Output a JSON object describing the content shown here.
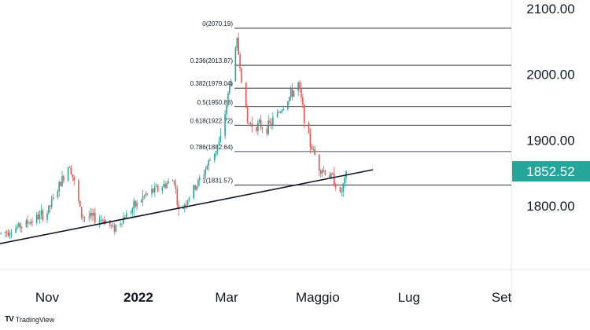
{
  "chart_data": {
    "type": "candlestick",
    "title": "",
    "xlabel": "",
    "ylabel": "",
    "ylim": [
      1730,
      2110
    ],
    "y_ticks": [
      {
        "label": "2100.00",
        "value": 2100
      },
      {
        "label": "2000.00",
        "value": 2000
      },
      {
        "label": "1900.00",
        "value": 1900
      },
      {
        "label": "1800.00",
        "value": 1800
      }
    ],
    "x_ticks": [
      {
        "label": "Nov",
        "date": "2021-11-01",
        "bold": false
      },
      {
        "label": "2022",
        "date": "2022-01-01",
        "bold": true
      },
      {
        "label": "Mar",
        "date": "2022-03-01",
        "bold": false
      },
      {
        "label": "Maggio",
        "date": "2022-05-01",
        "bold": false
      },
      {
        "label": "Lug",
        "date": "2022-07-01",
        "bold": false
      },
      {
        "label": "Set",
        "date": "2022-09-01",
        "bold": false
      }
    ],
    "last_price": {
      "label": "1852.52",
      "value": 1852.52,
      "color": "#26a69a"
    },
    "fib_levels": [
      {
        "label": "0(2070.19)",
        "value": 2070.19
      },
      {
        "label": "0.236(2013.87)",
        "value": 2013.87
      },
      {
        "label": "0.382(1979.04)",
        "value": 1979.04
      },
      {
        "label": "0.5(1950.88)",
        "value": 1950.88
      },
      {
        "label": "0.618(1922.72)",
        "value": 1922.72
      },
      {
        "label": "0.786(1882.64)",
        "value": 1882.64
      },
      {
        "label": "1(1831.57)",
        "value": 1831.57
      }
    ],
    "trendline": [
      {
        "date": "2021-09-27",
        "value": 1741
      },
      {
        "date": "2022-06-07",
        "value": 1855
      }
    ],
    "key_points": [
      {
        "date": "2021-10-01",
        "value": 1758
      },
      {
        "date": "2021-10-15",
        "value": 1770
      },
      {
        "date": "2021-11-01",
        "value": 1790
      },
      {
        "date": "2021-11-16",
        "value": 1865
      },
      {
        "date": "2021-11-24",
        "value": 1785
      },
      {
        "date": "2021-12-10",
        "value": 1778
      },
      {
        "date": "2021-12-15",
        "value": 1765
      },
      {
        "date": "2022-01-05",
        "value": 1815
      },
      {
        "date": "2022-01-25",
        "value": 1840
      },
      {
        "date": "2022-01-28",
        "value": 1790
      },
      {
        "date": "2022-02-10",
        "value": 1835
      },
      {
        "date": "2022-02-25",
        "value": 1900
      },
      {
        "date": "2022-03-08",
        "value": 2050
      },
      {
        "date": "2022-03-15",
        "value": 1925
      },
      {
        "date": "2022-03-29",
        "value": 1920
      },
      {
        "date": "2022-04-18",
        "value": 1985
      },
      {
        "date": "2022-04-25",
        "value": 1900
      },
      {
        "date": "2022-05-02",
        "value": 1860
      },
      {
        "date": "2022-05-12",
        "value": 1840
      },
      {
        "date": "2022-05-16",
        "value": 1815
      },
      {
        "date": "2022-05-20",
        "value": 1845
      }
    ],
    "colors": {
      "up": "#26a69a",
      "down": "#ef5350",
      "grid": "#e0e3eb",
      "line": "#131722"
    },
    "grid": true,
    "legend": "none"
  },
  "brand": {
    "logo": "TV",
    "name": "TradingView"
  }
}
